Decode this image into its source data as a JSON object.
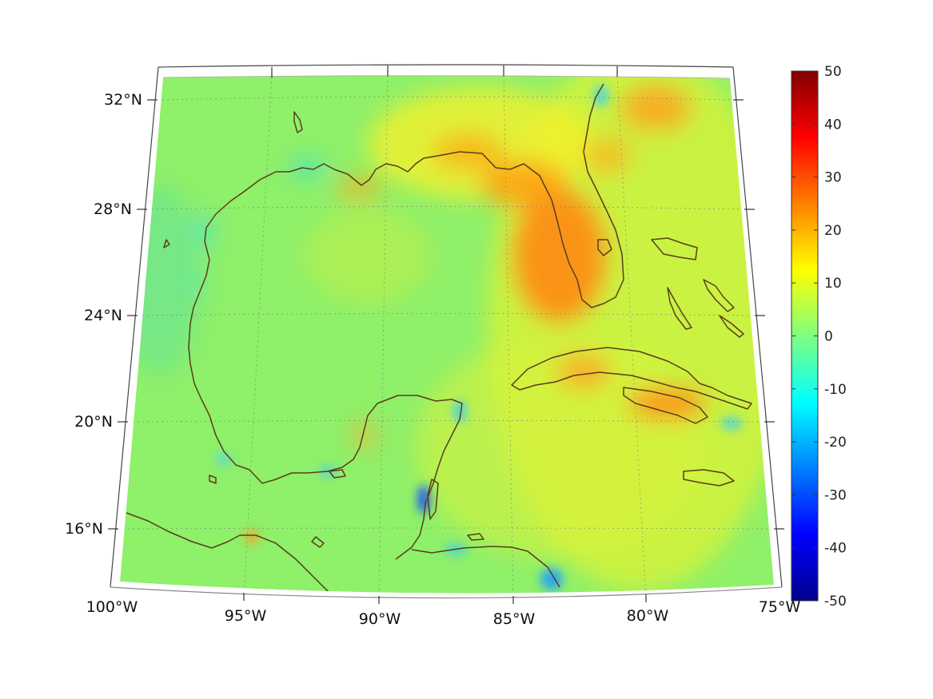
{
  "map": {
    "projection": "lambert-conic",
    "lon_range": [
      -100,
      -75
    ],
    "lat_range": [
      14,
      33
    ],
    "lon_ticks": [
      {
        "value": -100,
        "label": "100°W"
      },
      {
        "value": -95,
        "label": "95°W"
      },
      {
        "value": -90,
        "label": "90°W"
      },
      {
        "value": -85,
        "label": "85°W"
      },
      {
        "value": -80,
        "label": "80°W"
      },
      {
        "value": -75,
        "label": "75°W"
      }
    ],
    "lat_ticks": [
      {
        "value": 32,
        "label": "32°N"
      },
      {
        "value": 28,
        "label": "28°N"
      },
      {
        "value": 24,
        "label": "24°N"
      },
      {
        "value": 20,
        "label": "20°N"
      },
      {
        "value": 16,
        "label": "16°N"
      }
    ],
    "grid": true,
    "coastline_color": "#5a3d1c"
  },
  "colorbar": {
    "min": -50,
    "max": 50,
    "colormap": "jet",
    "ticks": [
      "50",
      "40",
      "30",
      "20",
      "10",
      "0",
      "-10",
      "-20",
      "-30",
      "-40",
      "-50"
    ]
  }
}
